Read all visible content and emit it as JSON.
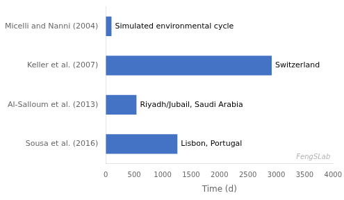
{
  "chart_data": {
    "type": "bar",
    "orientation": "horizontal",
    "categories": [
      "Micelli and Nanni (2004)",
      "Keller et al. (2007)",
      "Al-Salloum et al. (2013)",
      "Sousa et al. (2016)"
    ],
    "values": [
      100,
      2920,
      540,
      1260
    ],
    "color": "#4472C4",
    "xlabel": "Time (d)",
    "xlim": [
      0,
      4000
    ],
    "xticks": [
      0,
      500,
      1000,
      1500,
      2000,
      2500,
      3000,
      3500,
      4000
    ],
    "grid": false,
    "annotations": [
      {
        "text": "Simulated environmental cycle",
        "category": "Micelli and Nanni (2004)"
      },
      {
        "text": "Switzerland",
        "category": "Keller et al. (2007)"
      },
      {
        "text": "Riyadh/Jubail, Saudi Arabia",
        "category": "Al-Salloum et al. (2013)"
      },
      {
        "text": "Lisbon, Portugal",
        "category": "Sousa et al. (2016)"
      },
      {
        "text": "FengSLab"
      }
    ]
  }
}
